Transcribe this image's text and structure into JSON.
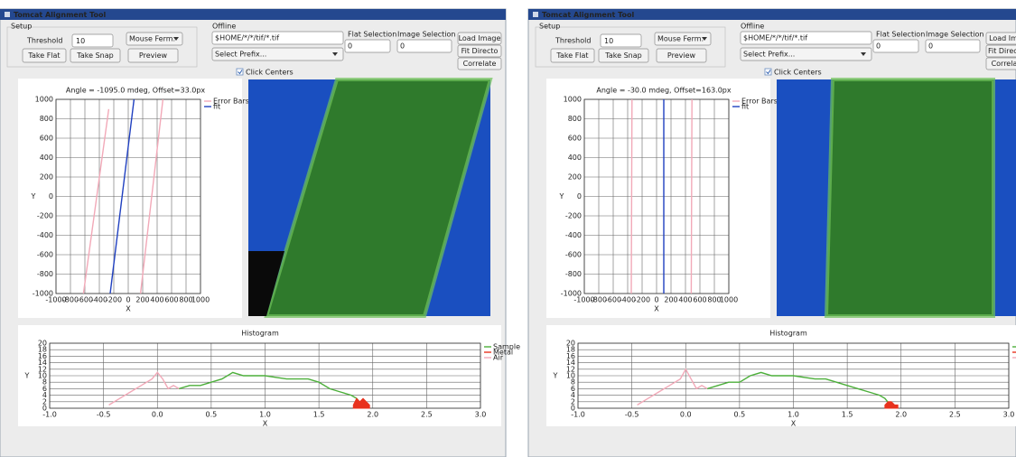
{
  "windows": [
    {
      "title": "Tomcat Alignment Tool",
      "setup": {
        "label": "Setup",
        "threshold_label": "Threshold",
        "threshold_value": "10",
        "mode": "Mouse Ferm.",
        "take_flat": "Take Flat",
        "take_snap": "Take Snap",
        "preview": "Preview"
      },
      "offline": {
        "label": "Offline",
        "path": "$HOME/*/*/tif/*.tif",
        "prefix": "Select Prefix...",
        "flat_selection": "Flat Selection",
        "flat_value": "0",
        "image_selection": "Image Selection",
        "image_value": "0",
        "load_image": "Load Image",
        "fit_directory": "Fit Directo",
        "correlate": "Correlate"
      },
      "click_centers": "Click Centers",
      "angle_chart": {
        "type": "line",
        "title": "Angle = -1095.0 mdeg, Offset=33.0px",
        "x_label": "X",
        "y_label": "Y",
        "xlim": [
          -1000,
          1000
        ],
        "ylim": [
          -1000,
          1000
        ],
        "xticks": [
          -1000,
          -800,
          -600,
          -400,
          -200,
          0,
          200,
          400,
          600,
          800,
          1000
        ],
        "yticks": [
          -1000,
          -800,
          -600,
          -400,
          -200,
          0,
          200,
          400,
          600,
          800,
          1000
        ],
        "grid": true,
        "series": [
          {
            "name": "Error Bars",
            "color": "#f2a9b8",
            "x": [
              -620,
              -270,
              null,
              170,
              480
            ],
            "values": [
              -1000,
              900,
              null,
              -1000,
              1000
            ]
          },
          {
            "name": "fit",
            "color": "#2040c0",
            "x": [
              -250,
              80
            ],
            "values": [
              -1000,
              1000
            ]
          }
        ]
      },
      "histogram": {
        "type": "line",
        "title": "Histogram",
        "x_label": "X",
        "y_label": "Y",
        "xlim": [
          -1,
          3
        ],
        "ylim": [
          0,
          20
        ],
        "xticks": [
          {
            "value": -1,
            "label": "-1.0"
          },
          -0.5,
          {
            "value": 0,
            "label": "0.0"
          },
          0.5,
          {
            "value": 1,
            "label": "1.0"
          },
          1.5,
          {
            "value": 2,
            "label": "2.0"
          },
          2.5,
          {
            "value": 3,
            "label": "3.0"
          }
        ],
        "yticks": [
          0,
          2,
          4,
          6,
          8,
          10,
          12,
          14,
          16,
          18,
          20
        ],
        "grid": true,
        "series": [
          {
            "name": "Sample",
            "color": "#4caf3a",
            "x": [
              0.2,
              0.3,
              0.4,
              0.5,
              0.6,
              0.7,
              0.8,
              0.9,
              1.0,
              1.1,
              1.2,
              1.3,
              1.4,
              1.5,
              1.6,
              1.7,
              1.8,
              1.85,
              1.9
            ],
            "values": [
              6,
              7,
              7,
              8,
              9,
              11,
              10,
              10,
              10,
              9.5,
              9,
              9,
              9,
              8,
              6,
              5,
              4,
              3,
              1
            ]
          },
          {
            "name": "Metal",
            "color": "#e8321e",
            "fill": true,
            "x": [
              1.82,
              1.85,
              1.88,
              1.91,
              1.94,
              1.97
            ],
            "values": [
              1,
              3,
              2,
              3,
              2,
              1
            ]
          },
          {
            "name": "Air",
            "color": "#f2a9b8",
            "x": [
              -0.45,
              -0.35,
              -0.25,
              -0.15,
              -0.05,
              0.0,
              0.05,
              0.1,
              0.15,
              0.2
            ],
            "values": [
              1,
              3,
              5,
              7,
              9,
              11,
              9,
              6,
              7,
              6
            ]
          }
        ]
      }
    },
    {
      "title": "Tomcat Alignment Tool",
      "setup": {
        "label": "Setup",
        "threshold_label": "Threshold",
        "threshold_value": "10",
        "mode": "Mouse Ferm.",
        "take_flat": "Take Flat",
        "take_snap": "Take Snap",
        "preview": "Preview"
      },
      "offline": {
        "label": "Offline",
        "path": "$HOME/*/*/tif/*.tif",
        "prefix": "Select Prefix...",
        "flat_selection": "Flat Selection",
        "flat_value": "0",
        "image_selection": "Image Selection",
        "image_value": "0",
        "load_image": "Load Imag",
        "fit_directory": "Fit Director",
        "correlate": "Correlate"
      },
      "click_centers": "Click Centers",
      "angle_chart": {
        "type": "line",
        "title": "Angle = -30.0 mdeg, Offset=163.0px",
        "x_label": "X",
        "y_label": "Y",
        "xlim": [
          -1000,
          1000
        ],
        "ylim": [
          -1000,
          1000
        ],
        "xticks": [
          -1000,
          -800,
          -600,
          -400,
          -200,
          0,
          200,
          400,
          600,
          800,
          1000
        ],
        "yticks": [
          -1000,
          -800,
          -600,
          -400,
          -200,
          0,
          200,
          400,
          600,
          800,
          1000
        ],
        "grid": true,
        "series": [
          {
            "name": "Error Bars",
            "color": "#f2a9b8",
            "x": [
              -350,
              -340,
              null,
              480,
              490
            ],
            "values": [
              -1000,
              1000,
              null,
              -1000,
              1000
            ]
          },
          {
            "name": "fit",
            "color": "#2040c0",
            "x": [
              100,
              100
            ],
            "values": [
              -1000,
              1000
            ]
          }
        ]
      },
      "histogram": {
        "type": "line",
        "title": "Histogram",
        "x_label": "X",
        "y_label": "Y",
        "xlim": [
          -1,
          3
        ],
        "ylim": [
          0,
          20
        ],
        "xticks": [
          {
            "value": -1,
            "label": "-1.0"
          },
          -0.5,
          {
            "value": 0,
            "label": "0.0"
          },
          0.5,
          {
            "value": 1,
            "label": "1.0"
          },
          1.5,
          {
            "value": 2,
            "label": "2.0"
          },
          2.5,
          {
            "value": 3,
            "label": "3.0"
          }
        ],
        "yticks": [
          0,
          2,
          4,
          6,
          8,
          10,
          12,
          14,
          16,
          18,
          20
        ],
        "grid": true,
        "series": [
          {
            "name": "Sample",
            "color": "#4caf3a",
            "x": [
              0.2,
              0.3,
              0.4,
              0.5,
              0.6,
              0.7,
              0.8,
              0.9,
              1.0,
              1.1,
              1.2,
              1.3,
              1.4,
              1.5,
              1.6,
              1.7,
              1.8,
              1.85,
              1.9
            ],
            "values": [
              6,
              7,
              8,
              8,
              10,
              11,
              10,
              10,
              10,
              9.5,
              9,
              9,
              8,
              7,
              6,
              5,
              4,
              3,
              1
            ]
          },
          {
            "name": "Metal",
            "color": "#e8321e",
            "fill": true,
            "x": [
              1.85,
              1.88,
              1.91,
              1.94,
              1.97
            ],
            "values": [
              1,
              2,
              2,
              1,
              1
            ]
          },
          {
            "name": "Air",
            "color": "#f2a9b8",
            "x": [
              -0.45,
              -0.35,
              -0.25,
              -0.15,
              -0.05,
              0.0,
              0.05,
              0.1,
              0.15,
              0.2
            ],
            "values": [
              1,
              3,
              5,
              7,
              9,
              12,
              9,
              6,
              7,
              6
            ]
          }
        ]
      }
    }
  ]
}
